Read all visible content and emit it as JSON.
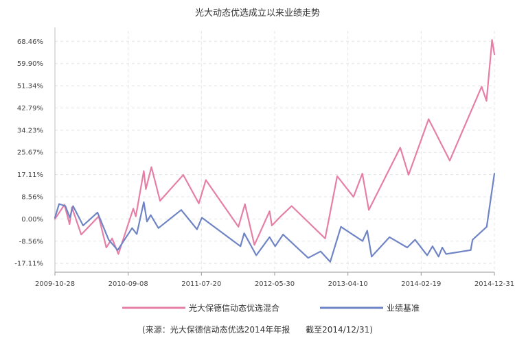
{
  "chart_data": {
    "type": "line",
    "title": "光大动态优选成立以来业绩走势",
    "source_note": "(来源：光大保德信动态优选2014年年报      截至2014/12/31)",
    "y_ticks": [
      "68.46%",
      "59.90%",
      "51.34%",
      "42.79%",
      "34.23%",
      "25.67%",
      "17.11%",
      "8.56%",
      "0.00%",
      "-8.56%",
      "-17.11%"
    ],
    "y_tick_values": [
      68.46,
      59.9,
      51.34,
      42.79,
      34.23,
      25.67,
      17.11,
      8.56,
      0.0,
      -8.56,
      -17.11
    ],
    "ylim": [
      -20.5,
      72.5
    ],
    "x_ticks": [
      "2009-10-28",
      "2010-09-08",
      "2011-07-20",
      "2012-05-30",
      "2013-04-10",
      "2014-02-19",
      "2014-12-31"
    ],
    "x_tick_values": [
      "2009-10-28",
      "2010-09-08",
      "2011-07-20",
      "2012-05-30",
      "2013-04-10",
      "2014-02-19",
      "2014-12-31"
    ],
    "xlim": [
      "2009-10-28",
      "2014-12-31"
    ],
    "grid": true,
    "legend_position": "bottom",
    "series": [
      {
        "name": "光大保德信动态优选混合",
        "color": "#e57fa6",
        "points": [
          [
            "2009-10-28",
            0.0
          ],
          [
            "2009-12-08",
            5.5
          ],
          [
            "2009-12-30",
            -2.0
          ],
          [
            "2010-01-09",
            4.5
          ],
          [
            "2010-02-18",
            -6.0
          ],
          [
            "2010-05-04",
            1.0
          ],
          [
            "2010-06-06",
            -11.0
          ],
          [
            "2010-07-01",
            -7.5
          ],
          [
            "2010-07-28",
            -13.5
          ],
          [
            "2010-09-30",
            4.0
          ],
          [
            "2010-10-11",
            1.0
          ],
          [
            "2010-11-14",
            18.5
          ],
          [
            "2010-11-23",
            11.5
          ],
          [
            "2010-12-17",
            20.0
          ],
          [
            "2011-01-23",
            7.0
          ],
          [
            "2011-05-03",
            17.0
          ],
          [
            "2011-07-09",
            6.0
          ],
          [
            "2011-08-08",
            15.0
          ],
          [
            "2011-12-26",
            -3.0
          ],
          [
            "2012-01-23",
            5.7
          ],
          [
            "2012-03-04",
            -10.0
          ],
          [
            "2012-05-08",
            3.0
          ],
          [
            "2012-05-18",
            -2.5
          ],
          [
            "2012-06-25",
            1.0
          ],
          [
            "2012-08-11",
            5.0
          ],
          [
            "2013-01-02",
            -7.5
          ],
          [
            "2013-02-23",
            16.5
          ],
          [
            "2013-05-04",
            8.5
          ],
          [
            "2013-06-11",
            17.5
          ],
          [
            "2013-07-09",
            3.5
          ],
          [
            "2013-11-21",
            27.5
          ],
          [
            "2013-12-27",
            17.0
          ],
          [
            "2014-03-23",
            38.5
          ],
          [
            "2014-06-22",
            22.5
          ],
          [
            "2014-11-06",
            51.0
          ],
          [
            "2014-11-27",
            45.5
          ],
          [
            "2014-12-21",
            69.0
          ],
          [
            "2014-12-31",
            63.5
          ]
        ]
      },
      {
        "name": "业绩基准",
        "color": "#6f84c5",
        "points": [
          [
            "2009-10-28",
            0.5
          ],
          [
            "2009-11-15",
            5.8
          ],
          [
            "2009-12-12",
            5.0
          ],
          [
            "2009-12-31",
            0.5
          ],
          [
            "2010-01-14",
            5.0
          ],
          [
            "2010-02-26",
            -2.5
          ],
          [
            "2010-04-29",
            2.5
          ],
          [
            "2010-06-16",
            -8.0
          ],
          [
            "2010-07-25",
            -12.0
          ],
          [
            "2010-09-25",
            -3.5
          ],
          [
            "2010-10-15",
            -5.8
          ],
          [
            "2010-11-14",
            6.5
          ],
          [
            "2010-11-28",
            -1.0
          ],
          [
            "2010-12-14",
            1.5
          ],
          [
            "2011-01-16",
            -3.5
          ],
          [
            "2011-04-24",
            3.5
          ],
          [
            "2011-07-01",
            -4.0
          ],
          [
            "2011-07-22",
            0.5
          ],
          [
            "2012-01-04",
            -10.5
          ],
          [
            "2012-01-20",
            -5.5
          ],
          [
            "2012-03-12",
            -14.0
          ],
          [
            "2012-05-08",
            -7.0
          ],
          [
            "2012-06-01",
            -10.5
          ],
          [
            "2012-07-05",
            -6.0
          ],
          [
            "2012-10-21",
            -15.0
          ],
          [
            "2012-12-14",
            -12.5
          ],
          [
            "2013-01-24",
            -16.5
          ],
          [
            "2013-03-11",
            -3.0
          ],
          [
            "2013-06-12",
            -8.5
          ],
          [
            "2013-07-02",
            -4.5
          ],
          [
            "2013-07-21",
            -14.5
          ],
          [
            "2013-10-06",
            -7.0
          ],
          [
            "2013-12-21",
            -11.0
          ],
          [
            "2014-01-24",
            -8.0
          ],
          [
            "2014-03-17",
            -14.0
          ],
          [
            "2014-04-09",
            -10.5
          ],
          [
            "2014-05-05",
            -14.5
          ],
          [
            "2014-05-21",
            -11.0
          ],
          [
            "2014-06-06",
            -13.5
          ],
          [
            "2014-09-20",
            -12.0
          ],
          [
            "2014-09-28",
            -8.0
          ],
          [
            "2014-11-28",
            -3.0
          ],
          [
            "2014-12-31",
            17.5
          ]
        ]
      }
    ]
  }
}
